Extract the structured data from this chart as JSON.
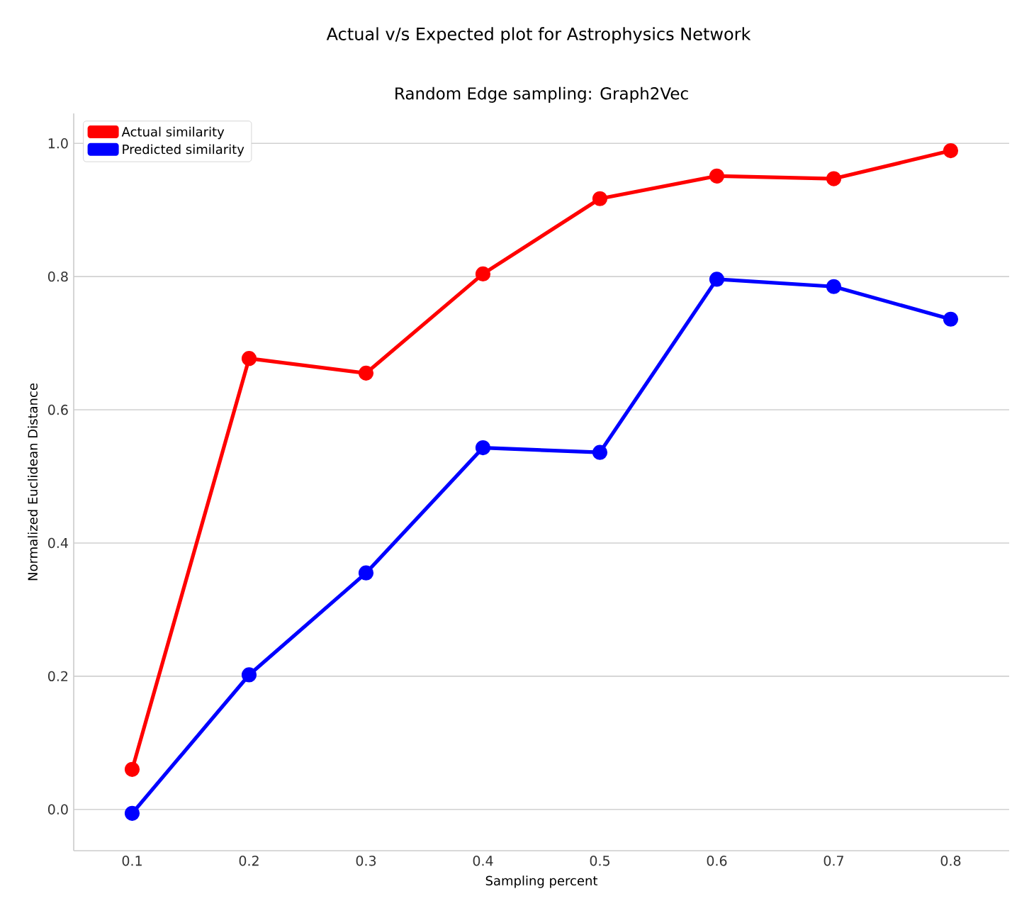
{
  "chart_data": {
    "type": "line",
    "title": "Random Edge sampling: Graph2Vec",
    "subtitle": "Actual v/s Expected plot for Astrophysics Network",
    "xlabel": "Sampling percent",
    "ylabel": "Normalized Euclidean Distance",
    "categories": [
      "0.1",
      "0.2",
      "0.3",
      "0.4",
      "0.5",
      "0.6",
      "0.7",
      "0.8"
    ],
    "series": [
      {
        "name": "Actual similarity",
        "color": "#ff0000",
        "values": [
          0.06,
          0.677,
          0.655,
          0.804,
          0.917,
          0.951,
          0.947,
          0.989
        ]
      },
      {
        "name": "Predicted similarity",
        "color": "#0000ff",
        "values": [
          -0.006,
          0.202,
          0.355,
          0.543,
          0.536,
          0.796,
          0.785,
          0.736
        ]
      }
    ],
    "ylim": [
      -0.062,
      1.045
    ],
    "yticks": [
      {
        "value": 0,
        "label": "0.0"
      },
      0.2,
      0.4,
      0.6,
      0.8,
      {
        "value": 1,
        "label": "1.0"
      }
    ],
    "grid": "y",
    "legend": "top left",
    "marker": "circle",
    "line_style": "solid"
  }
}
